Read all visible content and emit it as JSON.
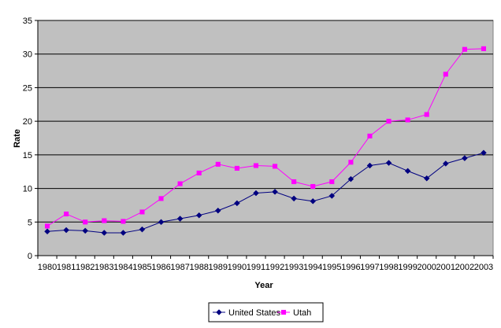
{
  "chart_data": {
    "type": "line",
    "title": "",
    "xlabel": "Year",
    "ylabel": "Rate",
    "ylim": [
      0,
      35
    ],
    "yticks": [
      0,
      5,
      10,
      15,
      20,
      25,
      30,
      35
    ],
    "grid": "horizontal",
    "legend_position": "bottom",
    "categories": [
      "1980",
      "1981",
      "1982",
      "1983",
      "1984",
      "1985",
      "1986",
      "1987",
      "1988",
      "1989",
      "1990",
      "1991",
      "1992",
      "1993",
      "1994",
      "1995",
      "1996",
      "1997",
      "1998",
      "1999",
      "2000",
      "2001",
      "2002",
      "2003"
    ],
    "series": [
      {
        "name": "United States",
        "color": "#000080",
        "marker": "diamond",
        "values": [
          3.6,
          3.8,
          3.7,
          3.4,
          3.4,
          3.9,
          5.0,
          5.5,
          6.0,
          6.7,
          7.8,
          9.3,
          9.5,
          8.5,
          8.1,
          8.9,
          11.4,
          13.4,
          13.8,
          12.6,
          11.5,
          13.7,
          14.5,
          15.3
        ]
      },
      {
        "name": "Utah",
        "color": "#FF00FF",
        "marker": "square",
        "values": [
          4.4,
          6.2,
          5.0,
          5.2,
          5.1,
          6.5,
          8.5,
          10.7,
          12.3,
          13.6,
          13.0,
          13.4,
          13.3,
          11.0,
          10.3,
          11.0,
          13.9,
          17.8,
          20.0,
          20.2,
          21.0,
          27.0,
          30.7,
          30.8
        ]
      }
    ]
  },
  "colors": {
    "plot_background": "#C0C0C0",
    "grid_line": "#000000"
  }
}
